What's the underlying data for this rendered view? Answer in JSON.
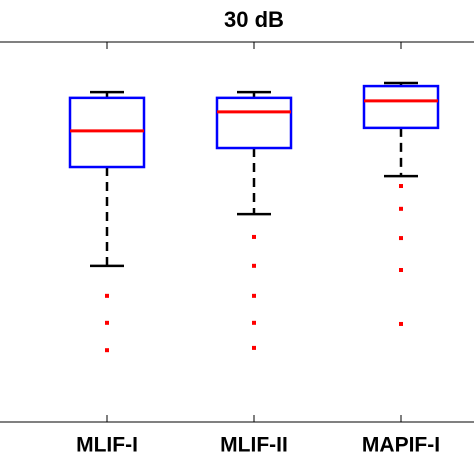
{
  "chart_data": {
    "type": "box",
    "title": "30 dB",
    "categories": [
      "MLIF-I",
      "MLIF-II",
      "MAPIF-I"
    ],
    "ylim": [
      0,
      100
    ],
    "box_color": "#0000ff",
    "median_color": "#ff0000",
    "whisker_color": "#000000",
    "outlier_color": "#ff0000",
    "boxes": [
      {
        "whisker_low": 41.1,
        "q1": 67.1,
        "median": 76.6,
        "q3": 85.3,
        "whisker_high": 86.8,
        "outliers": [
          33.2,
          26.1,
          18.9
        ]
      },
      {
        "whisker_low": 54.7,
        "q1": 72.1,
        "median": 81.6,
        "q3": 85.3,
        "whisker_high": 86.8,
        "outliers": [
          48.7,
          41.1,
          33.2,
          26.1,
          19.5
        ]
      },
      {
        "whisker_low": 64.7,
        "q1": 77.4,
        "median": 84.5,
        "q3": 88.4,
        "whisker_high": 89.2,
        "outliers": [
          62.1,
          56.1,
          48.4,
          40.0,
          25.8
        ]
      }
    ]
  }
}
